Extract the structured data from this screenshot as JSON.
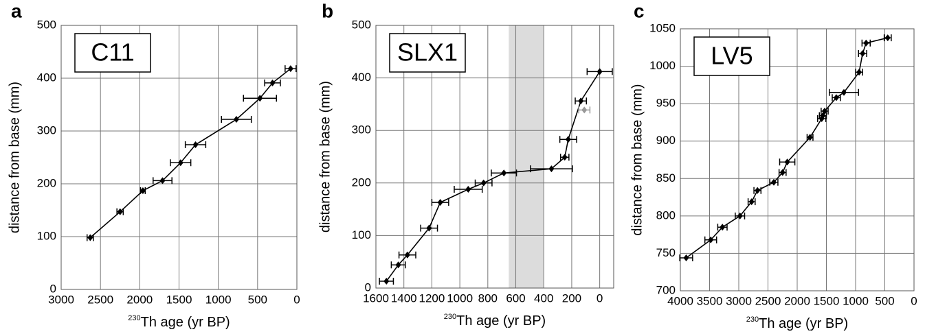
{
  "chart_data": [
    {
      "type": "line",
      "panel_label": "a",
      "name_box": "C11",
      "x_label_sup": "230",
      "x_label": "Th age (yr BP)",
      "y_label": "distance from base (mm)",
      "xlim": [
        3000,
        0
      ],
      "xticks": [
        3000,
        2500,
        2000,
        1500,
        1000,
        500,
        0
      ],
      "ylim": [
        0,
        500
      ],
      "yticks": [
        0,
        100,
        200,
        300,
        400,
        500
      ],
      "grid": true,
      "series": [
        {
          "color": "#000000",
          "x": [
            2630,
            2250,
            1960,
            1710,
            1480,
            1290,
            770,
            470,
            310,
            80
          ],
          "values": [
            98,
            147,
            187,
            206,
            240,
            274,
            322,
            362,
            391,
            418
          ],
          "xerr": [
            40,
            40,
            30,
            120,
            130,
            130,
            190,
            210,
            100,
            70
          ]
        }
      ]
    },
    {
      "type": "line",
      "panel_label": "b",
      "name_box": "SLX1",
      "x_label_sup": "230",
      "x_label": "Th age (yr BP)",
      "y_label": "distance from base (mm)",
      "xlim": [
        1600,
        -100
      ],
      "xticks": [
        1600,
        1400,
        1200,
        1000,
        800,
        600,
        400,
        200,
        0
      ],
      "ylim": [
        0,
        500
      ],
      "yticks": [
        0,
        100,
        200,
        300,
        400,
        500
      ],
      "grid": true,
      "shaded_range": [
        650,
        400
      ],
      "shade_color": "#dcdcdc",
      "series": [
        {
          "color": "#000000",
          "x": [
            1525,
            1440,
            1375,
            1220,
            1140,
            940,
            830,
            685,
            345,
            250,
            225,
            135,
            0
          ],
          "values": [
            13,
            44,
            63,
            114,
            163,
            188,
            200,
            219,
            227,
            249,
            283,
            356,
            412
          ],
          "xerr": [
            50,
            50,
            60,
            60,
            60,
            100,
            60,
            90,
            150,
            30,
            60,
            40,
            90
          ]
        },
        {
          "color": "#999999",
          "connect": false,
          "x": [
            110
          ],
          "values": [
            339
          ],
          "xerr": [
            40
          ]
        }
      ]
    },
    {
      "type": "line",
      "panel_label": "c",
      "name_box": "LV5",
      "x_label_sup": "230",
      "x_label": "Th age (yr BP)",
      "y_label": "distance from base (mm)",
      "xlim": [
        4000,
        0
      ],
      "xticks": [
        4000,
        3500,
        3000,
        2500,
        2000,
        1500,
        1000,
        500,
        0
      ],
      "ylim": [
        700,
        1050
      ],
      "yticks": [
        700,
        750,
        800,
        850,
        900,
        950,
        1000,
        1050
      ],
      "grid": true,
      "series": [
        {
          "color": "#000000",
          "x": [
            3900,
            3480,
            3280,
            2980,
            2780,
            2680,
            2400,
            2250,
            2170,
            1780,
            1580,
            1560,
            1530,
            1330,
            1200,
            940,
            880,
            820,
            450
          ],
          "values": [
            744,
            768,
            785,
            800,
            819,
            834,
            845,
            858,
            872,
            905,
            930,
            934,
            940,
            958,
            965,
            992,
            1017,
            1031,
            1038
          ],
          "xerr": [
            110,
            100,
            80,
            80,
            60,
            60,
            70,
            60,
            130,
            50,
            70,
            60,
            60,
            70,
            250,
            60,
            70,
            70,
            60
          ]
        }
      ]
    }
  ]
}
